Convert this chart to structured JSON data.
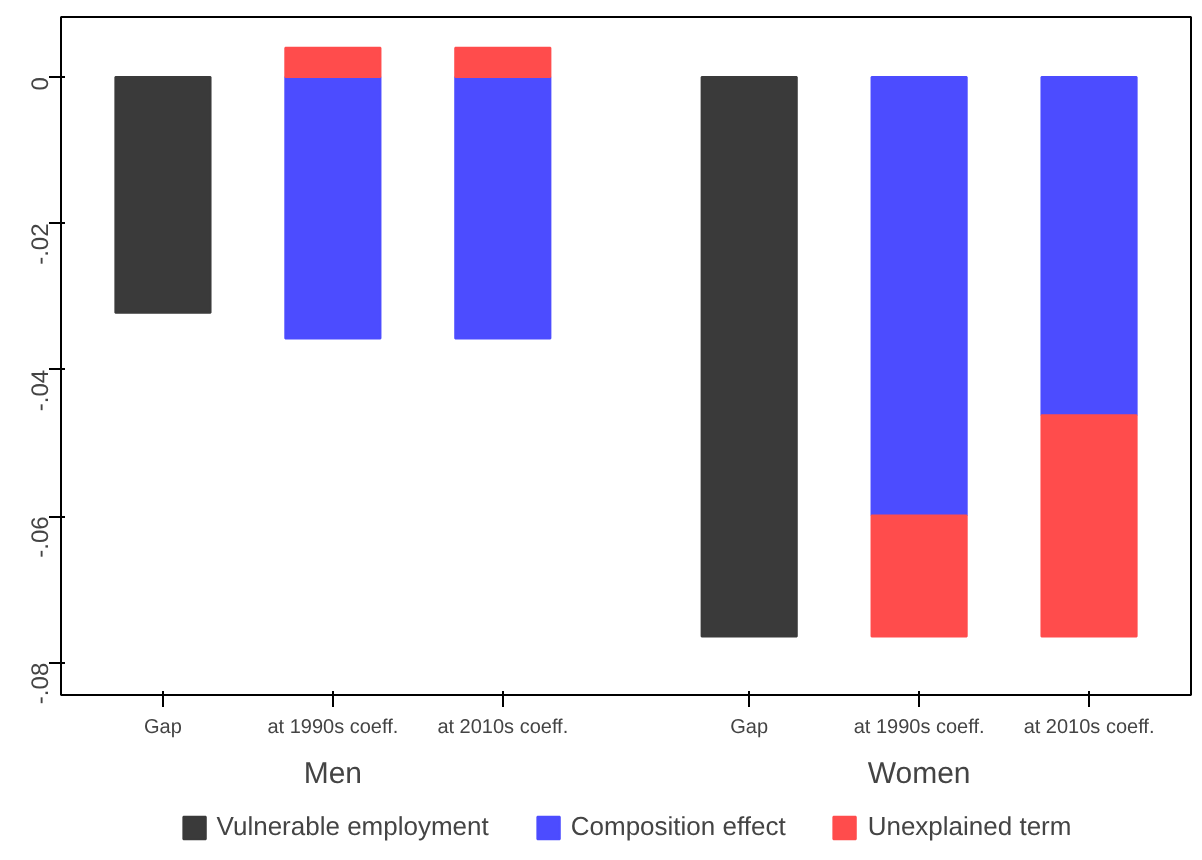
{
  "chart_data": {
    "type": "bar",
    "stacked": true,
    "categories": [
      "Gap",
      "at 1990s coeff.",
      "at 2010s coeff.",
      "Gap",
      "at 1990s coeff.",
      "at 2010s coeff."
    ],
    "annotations": [
      "Men",
      "Women"
    ],
    "series": [
      {
        "name": "Vulnerable employment",
        "color": "#3a3a3a",
        "values": [
          -0.0322,
          null,
          null,
          -0.0764,
          null,
          null
        ]
      },
      {
        "name": "Composition effect",
        "color": "#4c4cff",
        "values": [
          null,
          -0.0357,
          -0.0357,
          null,
          -0.0599,
          -0.0462
        ]
      },
      {
        "name": "Unexplained term",
        "color": "#ff4c4c",
        "values": [
          null,
          0.004,
          0.004,
          null,
          -0.0165,
          -0.0302
        ]
      }
    ],
    "ylim": [
      -0.0844,
      0.0082
    ],
    "yticks": [
      {
        "value": 0,
        "label": "0"
      },
      {
        "value": -0.02,
        "label": "-.02"
      },
      {
        "value": -0.04,
        "label": "-.04"
      },
      {
        "value": -0.06,
        "label": "-.06"
      },
      {
        "value": -0.08,
        "label": "-.08"
      }
    ],
    "grid": false,
    "legend": "bottom"
  }
}
